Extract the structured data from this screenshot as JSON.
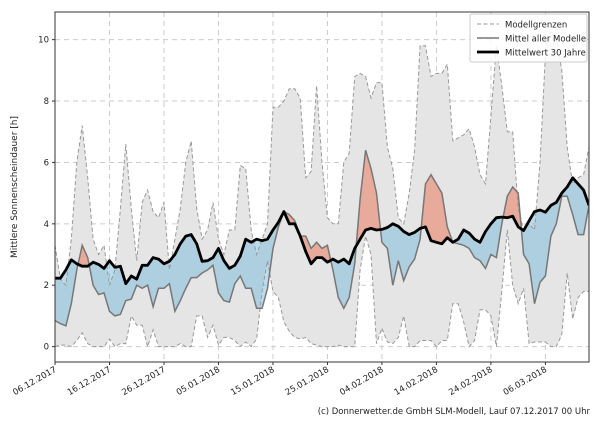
{
  "chart_data": {
    "type": "line",
    "xlabel": "",
    "ylabel": "Mittlere Sonnenscheindauer [h]",
    "x_start": "06.12.2017",
    "x_tick_labels": [
      "06.12.2017",
      "16.12.2017",
      "26.12.2017",
      "05.01.2018",
      "15.01.2018",
      "25.01.2018",
      "04.02.2018",
      "14.02.2018",
      "24.02.2018",
      "06.03.2018"
    ],
    "x_tick_step_days": 10,
    "xlim_days": [
      0,
      98
    ],
    "ylim": [
      -0.5,
      10.9
    ],
    "y_ticks": [
      0,
      2,
      4,
      6,
      8,
      10
    ],
    "grid": true,
    "legend_position": "top-right",
    "legend": [
      "Modellgrenzen",
      "Mittel aller Modelle",
      "Mittelwert 30 Jahre"
    ],
    "colors": {
      "range_fill": "#e5e5e5",
      "range_line": "#999999",
      "model_mean": "#777777",
      "climate_mean": "#000000",
      "above_fill": "#e8aa9a",
      "below_fill": "#8ec4de"
    },
    "series": [
      {
        "name": "Modellgrenzen",
        "role": "upper",
        "values": [
          3.3,
          2.2,
          2.0,
          3.5,
          6.0,
          7.2,
          5.5,
          3.5,
          3.0,
          3.3,
          2.0,
          2.5,
          4.5,
          6.6,
          4.5,
          2.8,
          4.7,
          5.1,
          4.4,
          4.2,
          4.7,
          2.5,
          3.5,
          4.5,
          6.0,
          6.7,
          4.5,
          3.5,
          3.8,
          4.7,
          3.5,
          3.0,
          3.8,
          3.8,
          5.9,
          5.8,
          3.8,
          3.0,
          3.5,
          4.0,
          7.8,
          7.8,
          8.0,
          8.4,
          8.4,
          8.1,
          5.5,
          5.7,
          8.5,
          6.0,
          4.2,
          4.0,
          4.0,
          6.0,
          6.3,
          8.8,
          8.9,
          8.8,
          8.1,
          8.6,
          8.6,
          6.5,
          5.8,
          4.2,
          4.0,
          5.0,
          6.4,
          9.8,
          9.8,
          8.8,
          8.9,
          8.9,
          9.2,
          6.7,
          6.8,
          6.9,
          7.1,
          6.5,
          5.6,
          5.3,
          7.5,
          9.8,
          8.5,
          7.0,
          7.0,
          4.5,
          3.8,
          4.0,
          3.8,
          6.0,
          9.5,
          10.3,
          10.1,
          9.0,
          6.5,
          5.3,
          5.5,
          5.6,
          6.5
        ]
      },
      {
        "name": "Modellgrenzen",
        "role": "lower",
        "values": [
          0,
          0.05,
          0.05,
          0,
          0.2,
          0.45,
          0.1,
          0,
          0,
          0,
          0.25,
          0,
          0.1,
          0.1,
          1.0,
          0.7,
          0.7,
          0,
          0.55,
          0,
          0,
          0,
          0,
          0.1,
          0,
          0,
          1.0,
          1.0,
          0.3,
          0.7,
          0.05,
          0.3,
          0.3,
          0.2,
          0,
          0.15,
          0,
          0.25,
          1.8,
          2.8,
          1.8,
          1.6,
          0.8,
          0.5,
          0.3,
          0.25,
          0.3,
          0.1,
          0.05,
          0,
          0,
          0,
          0.05,
          0,
          0,
          0,
          2.5,
          3.6,
          3.0,
          0.1,
          0.6,
          0.15,
          0.1,
          0.3,
          1.0,
          0,
          0,
          0.2,
          0.2,
          0.2,
          0,
          0.2,
          0.2,
          1.4,
          1.4,
          0.8,
          0,
          0.2,
          1.2,
          1.2,
          1.0,
          0,
          1.8,
          3.8,
          2.0,
          1.4,
          1.9,
          0.1,
          0.15,
          0.15,
          0.15,
          0,
          0,
          0.4,
          2.4,
          0.9,
          1.6,
          1.8,
          1.8
        ]
      },
      {
        "name": "Mittel aller Modelle",
        "values": [
          0.85,
          0.75,
          0.68,
          1.4,
          2.5,
          3.3,
          2.9,
          2.0,
          1.7,
          1.75,
          1.15,
          1.0,
          1.05,
          1.5,
          1.55,
          2.0,
          1.9,
          2.0,
          1.3,
          1.9,
          1.9,
          2.05,
          1.15,
          1.5,
          1.9,
          2.25,
          2.25,
          2.4,
          2.5,
          2.65,
          1.75,
          1.5,
          1.45,
          2.05,
          2.3,
          1.9,
          1.9,
          1.25,
          1.25,
          1.9,
          3.2,
          3.9,
          4.4,
          4.3,
          4.1,
          3.6,
          3.6,
          3.2,
          3.4,
          3.2,
          3.3,
          2.5,
          1.6,
          1.25,
          1.6,
          2.7,
          4.8,
          6.4,
          5.8,
          5.0,
          3.4,
          3.2,
          2.0,
          2.8,
          2.15,
          2.6,
          2.85,
          3.5,
          5.3,
          5.6,
          5.3,
          5.0,
          3.9,
          3.4,
          3.35,
          3.3,
          3.2,
          2.9,
          2.8,
          2.55,
          3.0,
          2.9,
          4.0,
          4.9,
          5.2,
          5.0,
          3.0,
          2.7,
          1.4,
          2.1,
          2.3,
          3.6,
          4.0,
          4.9,
          4.9,
          4.3,
          3.65,
          3.65,
          4.6
        ]
      },
      {
        "name": "Mittelwert 30 Jahre",
        "values": [
          2.23,
          2.23,
          2.5,
          2.83,
          2.7,
          2.62,
          2.62,
          2.75,
          2.68,
          2.55,
          2.8,
          2.58,
          2.62,
          2.05,
          2.3,
          2.2,
          2.65,
          2.65,
          2.9,
          2.85,
          2.7,
          2.78,
          3.0,
          3.35,
          3.6,
          3.65,
          3.35,
          2.78,
          2.8,
          2.9,
          3.2,
          2.8,
          2.55,
          2.65,
          2.95,
          3.5,
          3.4,
          3.5,
          3.45,
          3.5,
          3.8,
          4.05,
          4.4,
          4.0,
          4.0,
          3.6,
          3.1,
          2.7,
          2.9,
          2.9,
          2.75,
          2.85,
          2.75,
          2.85,
          2.7,
          3.2,
          3.5,
          3.8,
          3.85,
          3.8,
          3.82,
          3.88,
          4.0,
          3.92,
          3.75,
          3.65,
          3.72,
          3.85,
          3.9,
          3.45,
          3.4,
          3.35,
          3.55,
          3.4,
          3.5,
          3.8,
          3.7,
          3.5,
          3.4,
          3.75,
          4.0,
          4.2,
          4.22,
          4.2,
          4.25,
          3.9,
          3.78,
          4.1,
          4.4,
          4.45,
          4.38,
          4.6,
          4.7,
          5.0,
          5.2,
          5.5,
          5.3,
          5.1,
          4.6
        ]
      }
    ]
  },
  "footer": "(c) Donnerwetter.de GmbH SLM-Modell, Lauf 07.12.2017 00 Uhr"
}
